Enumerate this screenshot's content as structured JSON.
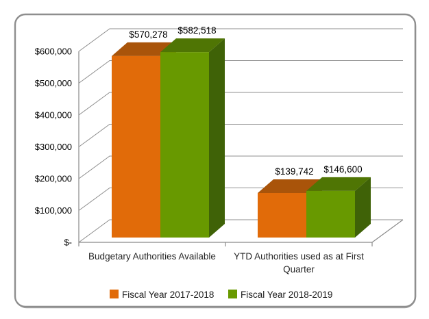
{
  "chart_data": {
    "type": "bar",
    "projection": "3d",
    "title": "",
    "categories": [
      "Budgetary Authorities Available",
      "YTD Authorities used as at First Quarter"
    ],
    "categories_wrapped": [
      [
        "Budgetary Authorities Available"
      ],
      [
        "YTD Authorities used as at First",
        "Quarter"
      ]
    ],
    "series": [
      {
        "name": "Fiscal Year 2017-2018",
        "values": [
          570278,
          139742
        ],
        "labels": [
          "$570,278",
          "$139,742"
        ],
        "color_front": "#E16B09",
        "color_top": "#A9540A",
        "color_side": "#8F4507"
      },
      {
        "name": "Fiscal Year 2018-2019",
        "values": [
          582518,
          146600
        ],
        "labels": [
          "$582,518",
          "$146,600"
        ],
        "color_front": "#689900",
        "color_top": "#4F7504",
        "color_side": "#3F6207"
      }
    ],
    "ylim": [
      0,
      600000
    ],
    "ytick_step": 100000,
    "yticks": [
      {
        "value": 600000,
        "label": "$600,000"
      },
      {
        "value": 500000,
        "label": "$500,000"
      },
      {
        "value": 400000,
        "label": "$400,000"
      },
      {
        "value": 300000,
        "label": "$300,000"
      },
      {
        "value": 200000,
        "label": "$200,000"
      },
      {
        "value": 100000,
        "label": "$100,000"
      },
      {
        "value": 0,
        "label": "$-"
      }
    ],
    "grid": true,
    "legend_position": "bottom"
  },
  "colors": {
    "background": "#FFFFFF",
    "gridline": "#8F8F8F",
    "axis": "#8A8A8A",
    "frame_border": "#8E8E8E",
    "text": "#000000"
  }
}
